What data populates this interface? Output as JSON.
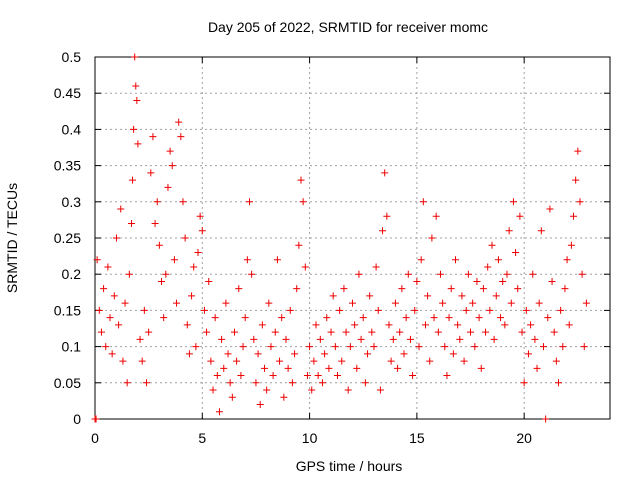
{
  "chart_data": {
    "type": "scatter",
    "title": "Day 205 of 2022, SRMTID for receiver momc",
    "xlabel": "GPS time / hours",
    "ylabel": "SRMTID / TECUs",
    "xlim": [
      0,
      24
    ],
    "ylim": [
      0,
      0.5
    ],
    "x_ticks": [
      0,
      5,
      10,
      15,
      20
    ],
    "y_ticks": [
      0,
      0.05,
      0.1,
      0.15,
      0.2,
      0.25,
      0.3,
      0.35,
      0.4,
      0.45,
      0.5
    ],
    "x_tick_labels": [
      "0",
      "5",
      "10",
      "15",
      "20"
    ],
    "y_tick_labels": [
      "0",
      "0.05",
      "0.1",
      "0.15",
      "0.2",
      "0.25",
      "0.3",
      "0.35",
      "0.4",
      "0.45",
      "0.5"
    ],
    "grid": true,
    "marker": "+",
    "color": "#ee0000",
    "series": [
      {
        "name": "SRMTID",
        "points": [
          [
            0.0,
            0.0
          ],
          [
            0.05,
            0.0
          ],
          [
            0.1,
            0.22
          ],
          [
            0.2,
            0.15
          ],
          [
            0.3,
            0.12
          ],
          [
            0.4,
            0.18
          ],
          [
            0.5,
            0.1
          ],
          [
            0.6,
            0.21
          ],
          [
            0.7,
            0.14
          ],
          [
            0.8,
            0.09
          ],
          [
            0.9,
            0.17
          ],
          [
            1.0,
            0.25
          ],
          [
            1.1,
            0.13
          ],
          [
            1.2,
            0.29
          ],
          [
            1.3,
            0.08
          ],
          [
            1.4,
            0.16
          ],
          [
            1.5,
            0.05
          ],
          [
            1.6,
            0.2
          ],
          [
            1.7,
            0.27
          ],
          [
            1.75,
            0.33
          ],
          [
            1.8,
            0.4
          ],
          [
            1.85,
            0.5
          ],
          [
            1.9,
            0.46
          ],
          [
            1.95,
            0.44
          ],
          [
            2.0,
            0.38
          ],
          [
            2.1,
            0.11
          ],
          [
            2.2,
            0.08
          ],
          [
            2.3,
            0.15
          ],
          [
            2.4,
            0.05
          ],
          [
            2.5,
            0.12
          ],
          [
            2.6,
            0.34
          ],
          [
            2.7,
            0.39
          ],
          [
            2.8,
            0.27
          ],
          [
            2.9,
            0.3
          ],
          [
            3.0,
            0.24
          ],
          [
            3.1,
            0.19
          ],
          [
            3.2,
            0.14
          ],
          [
            3.3,
            0.2
          ],
          [
            3.4,
            0.32
          ],
          [
            3.5,
            0.37
          ],
          [
            3.6,
            0.35
          ],
          [
            3.7,
            0.22
          ],
          [
            3.8,
            0.16
          ],
          [
            3.9,
            0.41
          ],
          [
            4.0,
            0.39
          ],
          [
            4.1,
            0.3
          ],
          [
            4.2,
            0.25
          ],
          [
            4.3,
            0.13
          ],
          [
            4.4,
            0.09
          ],
          [
            4.5,
            0.17
          ],
          [
            4.6,
            0.21
          ],
          [
            4.7,
            0.1
          ],
          [
            4.8,
            0.23
          ],
          [
            4.9,
            0.28
          ],
          [
            5.0,
            0.26
          ],
          [
            5.1,
            0.15
          ],
          [
            5.2,
            0.12
          ],
          [
            5.3,
            0.19
          ],
          [
            5.4,
            0.08
          ],
          [
            5.5,
            0.04
          ],
          [
            5.6,
            0.14
          ],
          [
            5.7,
            0.06
          ],
          [
            5.8,
            0.01
          ],
          [
            5.9,
            0.11
          ],
          [
            6.0,
            0.07
          ],
          [
            6.1,
            0.16
          ],
          [
            6.2,
            0.09
          ],
          [
            6.3,
            0.05
          ],
          [
            6.4,
            0.03
          ],
          [
            6.5,
            0.12
          ],
          [
            6.6,
            0.08
          ],
          [
            6.7,
            0.18
          ],
          [
            6.8,
            0.06
          ],
          [
            6.9,
            0.1
          ],
          [
            7.0,
            0.14
          ],
          [
            7.1,
            0.22
          ],
          [
            7.2,
            0.3
          ],
          [
            7.3,
            0.2
          ],
          [
            7.4,
            0.11
          ],
          [
            7.5,
            0.05
          ],
          [
            7.6,
            0.09
          ],
          [
            7.7,
            0.02
          ],
          [
            7.8,
            0.13
          ],
          [
            7.9,
            0.07
          ],
          [
            8.0,
            0.04
          ],
          [
            8.1,
            0.16
          ],
          [
            8.2,
            0.1
          ],
          [
            8.3,
            0.06
          ],
          [
            8.4,
            0.12
          ],
          [
            8.5,
            0.22
          ],
          [
            8.6,
            0.08
          ],
          [
            8.7,
            0.14
          ],
          [
            8.8,
            0.03
          ],
          [
            8.9,
            0.11
          ],
          [
            9.0,
            0.07
          ],
          [
            9.1,
            0.15
          ],
          [
            9.2,
            0.05
          ],
          [
            9.3,
            0.09
          ],
          [
            9.4,
            0.18
          ],
          [
            9.5,
            0.24
          ],
          [
            9.6,
            0.33
          ],
          [
            9.7,
            0.3
          ],
          [
            9.8,
            0.21
          ],
          [
            9.9,
            0.06
          ],
          [
            10.0,
            0.1
          ],
          [
            10.1,
            0.04
          ],
          [
            10.2,
            0.08
          ],
          [
            10.3,
            0.13
          ],
          [
            10.4,
            0.06
          ],
          [
            10.5,
            0.11
          ],
          [
            10.6,
            0.05
          ],
          [
            10.7,
            0.09
          ],
          [
            10.8,
            0.14
          ],
          [
            10.9,
            0.07
          ],
          [
            11.0,
            0.12
          ],
          [
            11.1,
            0.17
          ],
          [
            11.2,
            0.1
          ],
          [
            11.3,
            0.06
          ],
          [
            11.4,
            0.15
          ],
          [
            11.5,
            0.08
          ],
          [
            11.6,
            0.18
          ],
          [
            11.7,
            0.12
          ],
          [
            11.8,
            0.04
          ],
          [
            11.9,
            0.1
          ],
          [
            12.0,
            0.16
          ],
          [
            12.1,
            0.13
          ],
          [
            12.2,
            0.07
          ],
          [
            12.3,
            0.2
          ],
          [
            12.4,
            0.11
          ],
          [
            12.5,
            0.14
          ],
          [
            12.6,
            0.05
          ],
          [
            12.7,
            0.09
          ],
          [
            12.8,
            0.17
          ],
          [
            12.9,
            0.12
          ],
          [
            13.0,
            0.1
          ],
          [
            13.1,
            0.21
          ],
          [
            13.2,
            0.15
          ],
          [
            13.3,
            0.04
          ],
          [
            13.4,
            0.26
          ],
          [
            13.5,
            0.34
          ],
          [
            13.6,
            0.28
          ],
          [
            13.7,
            0.13
          ],
          [
            13.8,
            0.08
          ],
          [
            13.9,
            0.11
          ],
          [
            14.0,
            0.16
          ],
          [
            14.1,
            0.07
          ],
          [
            14.2,
            0.12
          ],
          [
            14.3,
            0.18
          ],
          [
            14.4,
            0.09
          ],
          [
            14.5,
            0.14
          ],
          [
            14.6,
            0.2
          ],
          [
            14.7,
            0.11
          ],
          [
            14.8,
            0.06
          ],
          [
            14.9,
            0.15
          ],
          [
            15.0,
            0.19
          ],
          [
            15.1,
            0.1
          ],
          [
            15.2,
            0.22
          ],
          [
            15.3,
            0.3
          ],
          [
            15.4,
            0.13
          ],
          [
            15.5,
            0.17
          ],
          [
            15.6,
            0.08
          ],
          [
            15.7,
            0.25
          ],
          [
            15.8,
            0.14
          ],
          [
            15.9,
            0.28
          ],
          [
            16.0,
            0.12
          ],
          [
            16.1,
            0.2
          ],
          [
            16.2,
            0.16
          ],
          [
            16.3,
            0.1
          ],
          [
            16.4,
            0.06
          ],
          [
            16.5,
            0.14
          ],
          [
            16.6,
            0.18
          ],
          [
            16.7,
            0.09
          ],
          [
            16.8,
            0.22
          ],
          [
            16.9,
            0.13
          ],
          [
            17.0,
            0.11
          ],
          [
            17.1,
            0.17
          ],
          [
            17.2,
            0.08
          ],
          [
            17.3,
            0.15
          ],
          [
            17.4,
            0.2
          ],
          [
            17.5,
            0.12
          ],
          [
            17.6,
            0.16
          ],
          [
            17.7,
            0.1
          ],
          [
            17.8,
            0.19
          ],
          [
            17.9,
            0.14
          ],
          [
            18.0,
            0.07
          ],
          [
            18.1,
            0.18
          ],
          [
            18.2,
            0.12
          ],
          [
            18.3,
            0.21
          ],
          [
            18.4,
            0.15
          ],
          [
            18.5,
            0.24
          ],
          [
            18.6,
            0.11
          ],
          [
            18.7,
            0.17
          ],
          [
            18.8,
            0.22
          ],
          [
            18.9,
            0.14
          ],
          [
            19.0,
            0.19
          ],
          [
            19.1,
            0.13
          ],
          [
            19.2,
            0.2
          ],
          [
            19.3,
            0.26
          ],
          [
            19.4,
            0.16
          ],
          [
            19.5,
            0.3
          ],
          [
            19.6,
            0.23
          ],
          [
            19.7,
            0.18
          ],
          [
            19.8,
            0.28
          ],
          [
            19.9,
            0.12
          ],
          [
            20.0,
            0.05
          ],
          [
            20.1,
            0.15
          ],
          [
            20.2,
            0.09
          ],
          [
            20.3,
            0.13
          ],
          [
            20.4,
            0.2
          ],
          [
            20.5,
            0.11
          ],
          [
            20.6,
            0.07
          ],
          [
            20.7,
            0.16
          ],
          [
            20.8,
            0.26
          ],
          [
            20.9,
            0.1
          ],
          [
            21.0,
            0.0
          ],
          [
            21.1,
            0.14
          ],
          [
            21.2,
            0.29
          ],
          [
            21.3,
            0.19
          ],
          [
            21.4,
            0.12
          ],
          [
            21.5,
            0.08
          ],
          [
            21.6,
            0.05
          ],
          [
            21.7,
            0.15
          ],
          [
            21.8,
            0.1
          ],
          [
            21.9,
            0.18
          ],
          [
            22.0,
            0.22
          ],
          [
            22.1,
            0.13
          ],
          [
            22.2,
            0.24
          ],
          [
            22.3,
            0.28
          ],
          [
            22.4,
            0.33
          ],
          [
            22.5,
            0.37
          ],
          [
            22.6,
            0.3
          ],
          [
            22.7,
            0.2
          ],
          [
            22.8,
            0.1
          ],
          [
            22.9,
            0.16
          ]
        ]
      }
    ]
  }
}
